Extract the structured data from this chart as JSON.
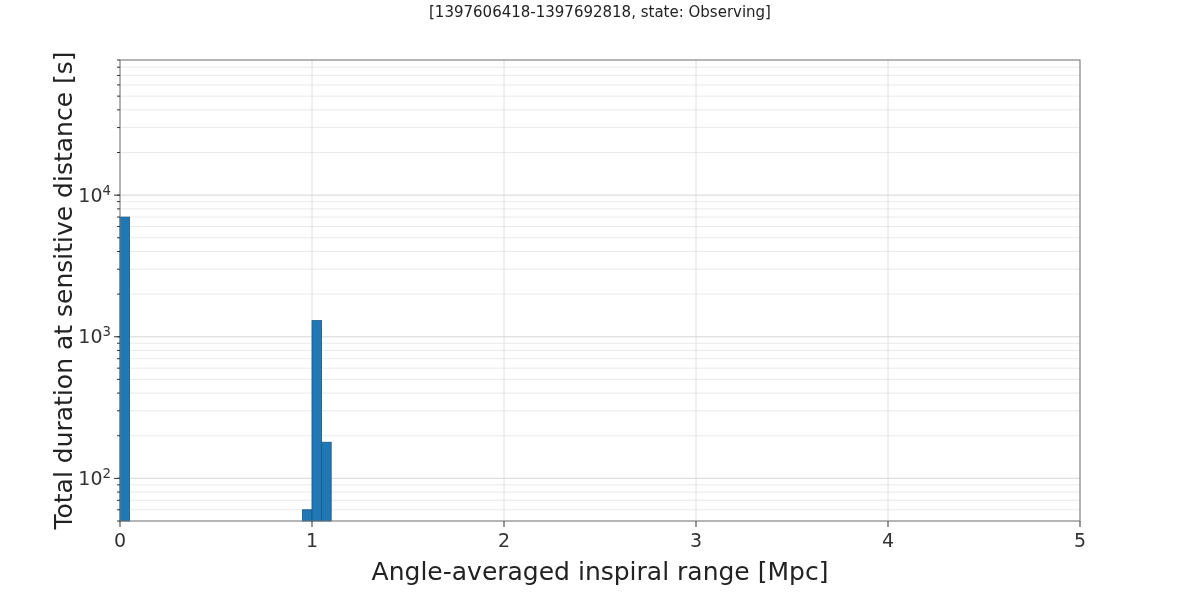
{
  "chart_data": {
    "type": "histogram",
    "title": "[1397606418-1397692818, state: Observing]",
    "xlabel": "Angle-averaged inspiral range [Mpc]",
    "ylabel": "Total duration at sensitive distance [s]",
    "bins": [
      0,
      0.05,
      0.95,
      1.0,
      1.05,
      1.1
    ],
    "values": [
      7000,
      null,
      60,
      1300,
      180
    ],
    "color": "#1f77b4",
    "xlim": [
      0,
      5
    ],
    "xticks": [
      0,
      1,
      2,
      3,
      4,
      5
    ],
    "ylim": [
      50,
      90000
    ],
    "yticks": [
      {
        "value": 100,
        "label": "10$^{2}$"
      },
      {
        "value": 1000,
        "label": "10$^{3}$"
      },
      {
        "value": 10000,
        "label": "10$^{4}$"
      }
    ],
    "log": "y",
    "grid": true
  }
}
